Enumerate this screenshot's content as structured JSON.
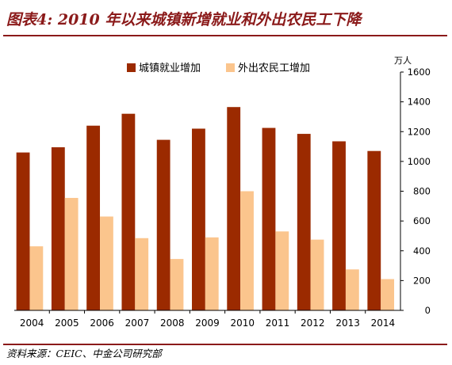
{
  "figure": {
    "title": "图表4: 2010 年以来城镇新增就业和外出农民工下降",
    "source": "资料来源：CEIC、中金公司研究部"
  },
  "colors": {
    "series_1": "#9b2a00",
    "series_2": "#fbc58d",
    "accent": "#8b1a1a"
  },
  "chart_data": {
    "type": "bar",
    "categories": [
      "2004",
      "2005",
      "2006",
      "2007",
      "2008",
      "2009",
      "2010",
      "2011",
      "2012",
      "2013",
      "2014"
    ],
    "series": [
      {
        "name": "城镇就业增加",
        "values": [
          1060,
          1095,
          1240,
          1320,
          1145,
          1220,
          1365,
          1225,
          1185,
          1135,
          1070
        ]
      },
      {
        "name": "外出农民工增加",
        "values": [
          430,
          755,
          630,
          485,
          345,
          490,
          800,
          530,
          475,
          275,
          210
        ]
      }
    ],
    "y_unit": "万人",
    "ylim": [
      0,
      1600
    ],
    "y_ticks": [
      "0",
      "200",
      "400",
      "600",
      "800",
      "1000",
      "1200",
      "1400",
      "1600"
    ],
    "y_axis_side": "right",
    "legend_position": "top",
    "grid": false
  }
}
